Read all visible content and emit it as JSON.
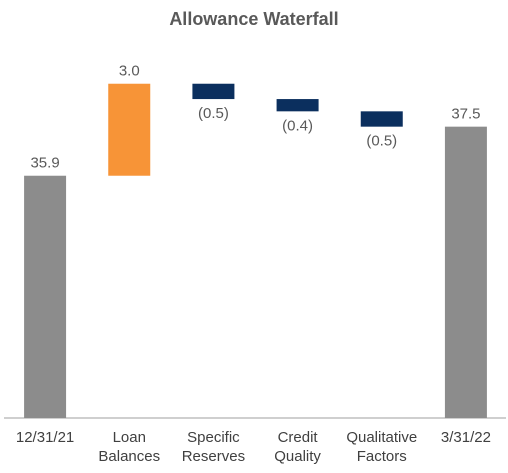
{
  "chart_data": {
    "type": "waterfall",
    "title": "Allowance Waterfall",
    "categories": [
      "12/31/21",
      "Loan Balances",
      "Specific Reserves",
      "Credit Quality",
      "Qualitative Factors",
      "3/31/22"
    ],
    "values": [
      35.9,
      3.0,
      -0.5,
      -0.4,
      -0.5,
      37.5
    ],
    "value_labels": [
      "35.9",
      "3.0",
      "(0.5)",
      "(0.4)",
      "(0.5)",
      "37.5"
    ],
    "ylim": [
      28,
      40
    ],
    "total_color": "#8c8c8c",
    "increase_color": "#f79437",
    "decrease_color": "#0b2f5e"
  }
}
